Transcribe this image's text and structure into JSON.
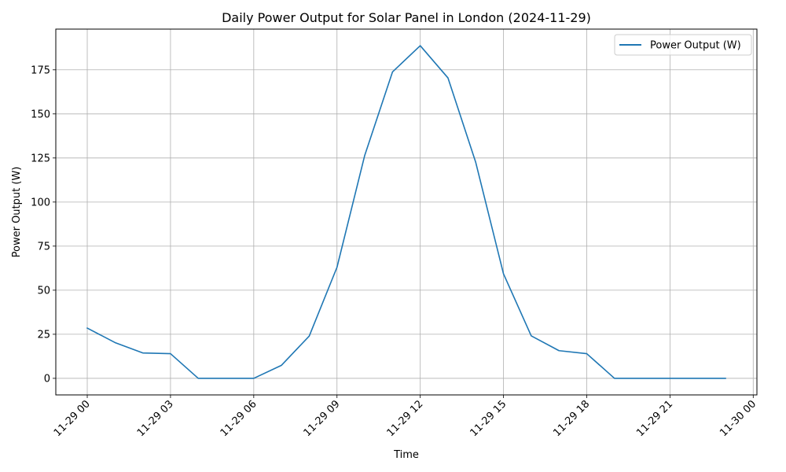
{
  "chart_data": {
    "type": "line",
    "title": "Daily Power Output for Solar Panel in London (2024-11-29)",
    "xlabel": "Time",
    "ylabel": "Power Output (W)",
    "x": [
      "2024-11-29 00:00",
      "2024-11-29 01:00",
      "2024-11-29 02:00",
      "2024-11-29 03:00",
      "2024-11-29 04:00",
      "2024-11-29 05:00",
      "2024-11-29 06:00",
      "2024-11-29 07:00",
      "2024-11-29 08:00",
      "2024-11-29 09:00",
      "2024-11-29 10:00",
      "2024-11-29 11:00",
      "2024-11-29 12:00",
      "2024-11-29 13:00",
      "2024-11-29 14:00",
      "2024-11-29 15:00",
      "2024-11-29 16:00",
      "2024-11-29 17:00",
      "2024-11-29 18:00",
      "2024-11-29 19:00",
      "2024-11-29 20:00",
      "2024-11-29 21:00",
      "2024-11-29 22:00",
      "2024-11-29 23:00"
    ],
    "series": [
      {
        "name": "Power Output (W)",
        "color": "#1f77b4",
        "values": [
          28.5,
          20.3,
          14.4,
          14.0,
          0,
          0,
          0,
          7.4,
          24.0,
          63.0,
          126.5,
          173.8,
          188.7,
          170.4,
          122.5,
          59.3,
          24.1,
          15.7,
          14.0,
          0,
          0,
          0,
          0,
          0
        ]
      }
    ],
    "xlim": [
      "2024-11-28 22:52",
      "2024-11-30 00:08"
    ],
    "ylim": [
      -9.4,
      198.1
    ],
    "x_ticks": [
      "2024-11-29 00:00",
      "2024-11-29 03:00",
      "2024-11-29 06:00",
      "2024-11-29 09:00",
      "2024-11-29 12:00",
      "2024-11-29 15:00",
      "2024-11-29 18:00",
      "2024-11-29 21:00",
      "2024-11-30 00:00"
    ],
    "x_tick_labels": [
      "11-29 00",
      "11-29 03",
      "11-29 06",
      "11-29 09",
      "11-29 12",
      "11-29 15",
      "11-29 18",
      "11-29 21",
      "11-30 00"
    ],
    "y_ticks": [
      0,
      25,
      50,
      75,
      100,
      125,
      150,
      175
    ],
    "y_tick_labels": [
      "0",
      "25",
      "50",
      "75",
      "100",
      "125",
      "150",
      "175"
    ],
    "grid": true,
    "legend_position": "top-right"
  }
}
